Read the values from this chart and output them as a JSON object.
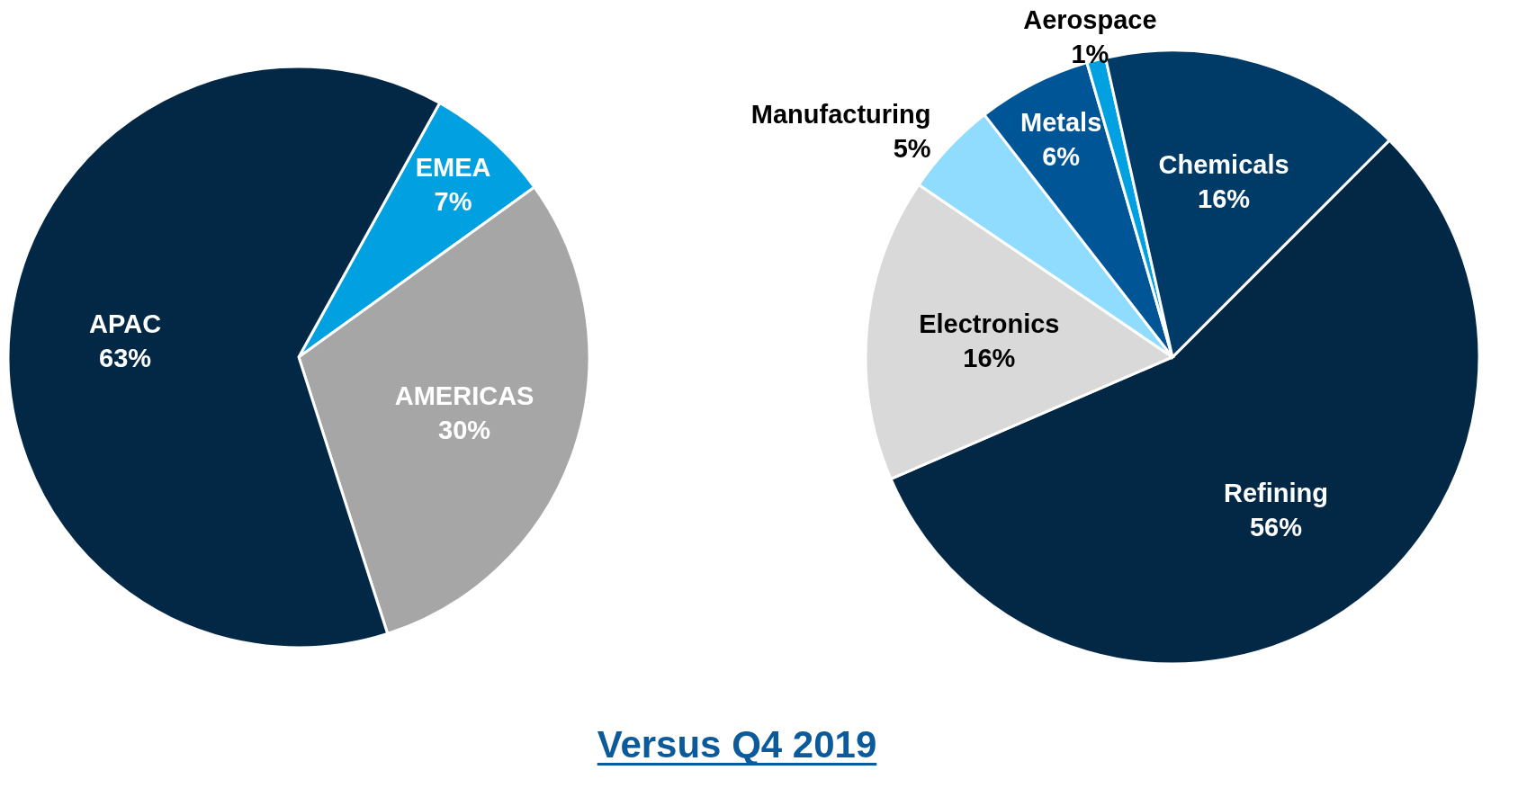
{
  "chart_data": [
    {
      "type": "pie",
      "categories": [
        "EMEA",
        "AMERICAS",
        "APAC"
      ],
      "values": [
        7,
        30,
        63
      ],
      "value_labels": [
        "7%",
        "30%",
        "63%"
      ],
      "colors": [
        "#00a0e1",
        "#a6a6a6",
        "#022846"
      ]
    },
    {
      "type": "pie",
      "categories": [
        "Refining",
        "Electronics",
        "Manufacturing",
        "Metals",
        "Aerospace",
        "Chemicals"
      ],
      "values": [
        56,
        16,
        5,
        6,
        1,
        16
      ],
      "value_labels": [
        "56%",
        "16%",
        "5%",
        "6%",
        "1%",
        "16%"
      ],
      "colors": [
        "#022846",
        "#d9d9d9",
        "#8fdcff",
        "#005596",
        "#00a0e1",
        "#003a66"
      ],
      "annotations": [
        "Versus Q4 2019"
      ]
    }
  ]
}
